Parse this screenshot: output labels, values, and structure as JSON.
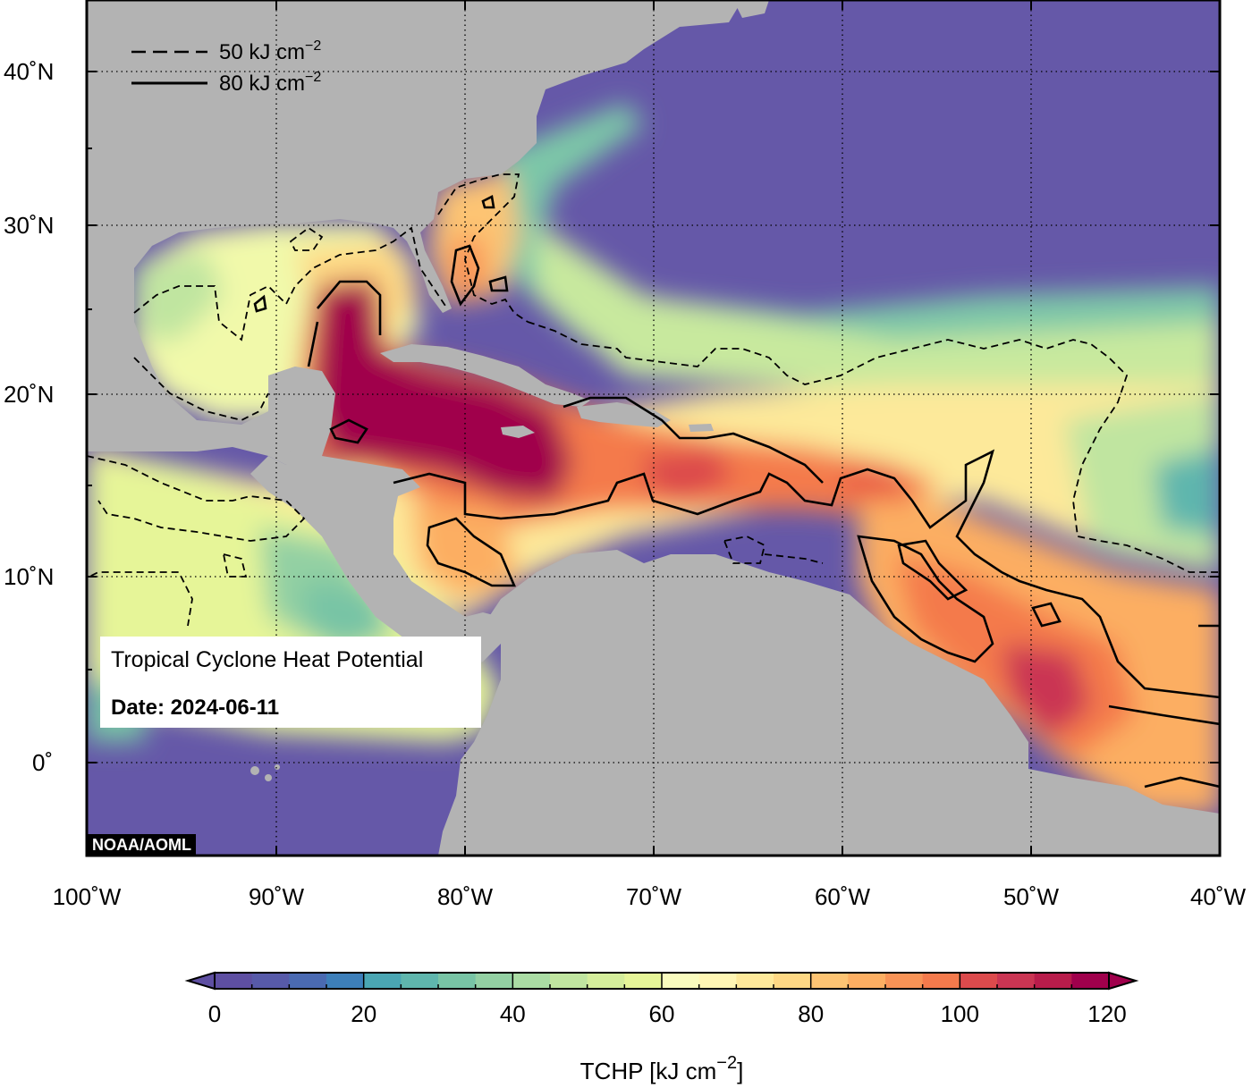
{
  "title": "Tropical Cyclone Heat Potential",
  "date": "Date: 2024-06-11",
  "credit": "NOAA/AOML",
  "legend": {
    "dashed_label": "50 kJ cm",
    "solid_label": "80 kJ cm",
    "exponent": "−2"
  },
  "axes": {
    "x_ticks": [
      "100˚W",
      "90˚W",
      "80˚W",
      "70˚W",
      "60˚W",
      "50˚W",
      "40˚W"
    ],
    "y_ticks": [
      "40˚N",
      "30˚N",
      "20˚N",
      "10˚N",
      "0˚"
    ],
    "lon_range": [
      -100,
      -40
    ],
    "lat_range": [
      -5,
      45
    ]
  },
  "colorbar": {
    "label": "TCHP [kJ cm",
    "label_exponent": "−2",
    "label_close": "]",
    "tick_labels": [
      "0",
      "20",
      "40",
      "60",
      "80",
      "100",
      "120"
    ],
    "range": [
      0,
      120
    ],
    "step": 5,
    "colors": [
      "#5e4fa2",
      "#575aa9",
      "#4a6ab2",
      "#3d7fba",
      "#3c93b9",
      "#4aa6b3",
      "#5fb6ad",
      "#78c4a5",
      "#93d0a3",
      "#aadca4",
      "#c0e5a0",
      "#d4ed9b",
      "#e6f598",
      "#f1f9aa",
      "#f9fbbe",
      "#fff6b4",
      "#fee99a",
      "#fed884",
      "#fdc473",
      "#fcae62",
      "#f89356",
      "#f47a4c",
      "#ea6047",
      "#dc4a4c",
      "#ca3553",
      "#b81c4b",
      "#a0004c"
    ]
  },
  "map_colors": {
    "ocean_cold": "#6558a8",
    "land": "#b3b3b3",
    "contour": "#000000"
  }
}
